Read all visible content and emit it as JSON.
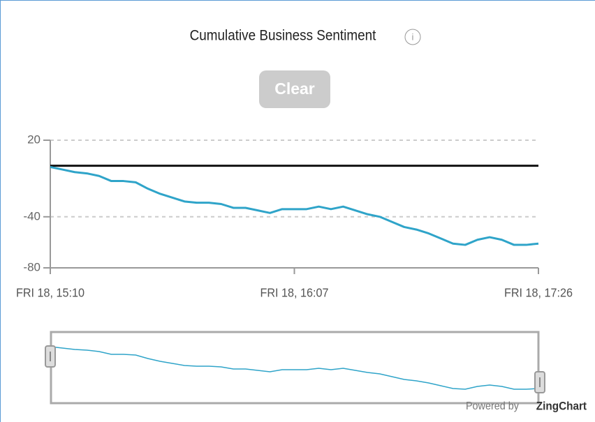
{
  "chart_data": {
    "type": "line",
    "title": "Cumulative Business Sentiment",
    "info_icon": "i",
    "button": "Clear",
    "credit": {
      "prefix": "Powered by",
      "brand": "ZingChart"
    },
    "categories": [
      "FRI 18, 15:10",
      null,
      null,
      null,
      null,
      null,
      null,
      null,
      null,
      null,
      null,
      null,
      null,
      null,
      null,
      null,
      null,
      null,
      null,
      null,
      "FRI 18, 16:07",
      null,
      null,
      null,
      null,
      null,
      null,
      null,
      null,
      null,
      null,
      null,
      null,
      null,
      null,
      null,
      null,
      null,
      null,
      null,
      "FRI 18, 17:26"
    ],
    "series": [
      {
        "color": "#2fa4c9",
        "values": [
          -1,
          -3,
          -5,
          -6,
          -8,
          -12,
          -12,
          -13,
          -18,
          -22,
          -25,
          -28,
          -29,
          -29,
          -30,
          -33,
          -33,
          -35,
          -37,
          -34,
          -34,
          -34,
          -32,
          -34,
          -32,
          -35,
          -38,
          -40,
          -44,
          -48,
          -50,
          -53,
          -57,
          -61,
          -62,
          -58,
          -56,
          -58,
          -62,
          -62,
          -61
        ]
      }
    ],
    "ylim": [
      -80,
      20
    ],
    "yticks": [
      -80,
      -40,
      20
    ],
    "grid": true,
    "reference_line": {
      "value": 0,
      "color": "#111111"
    }
  }
}
